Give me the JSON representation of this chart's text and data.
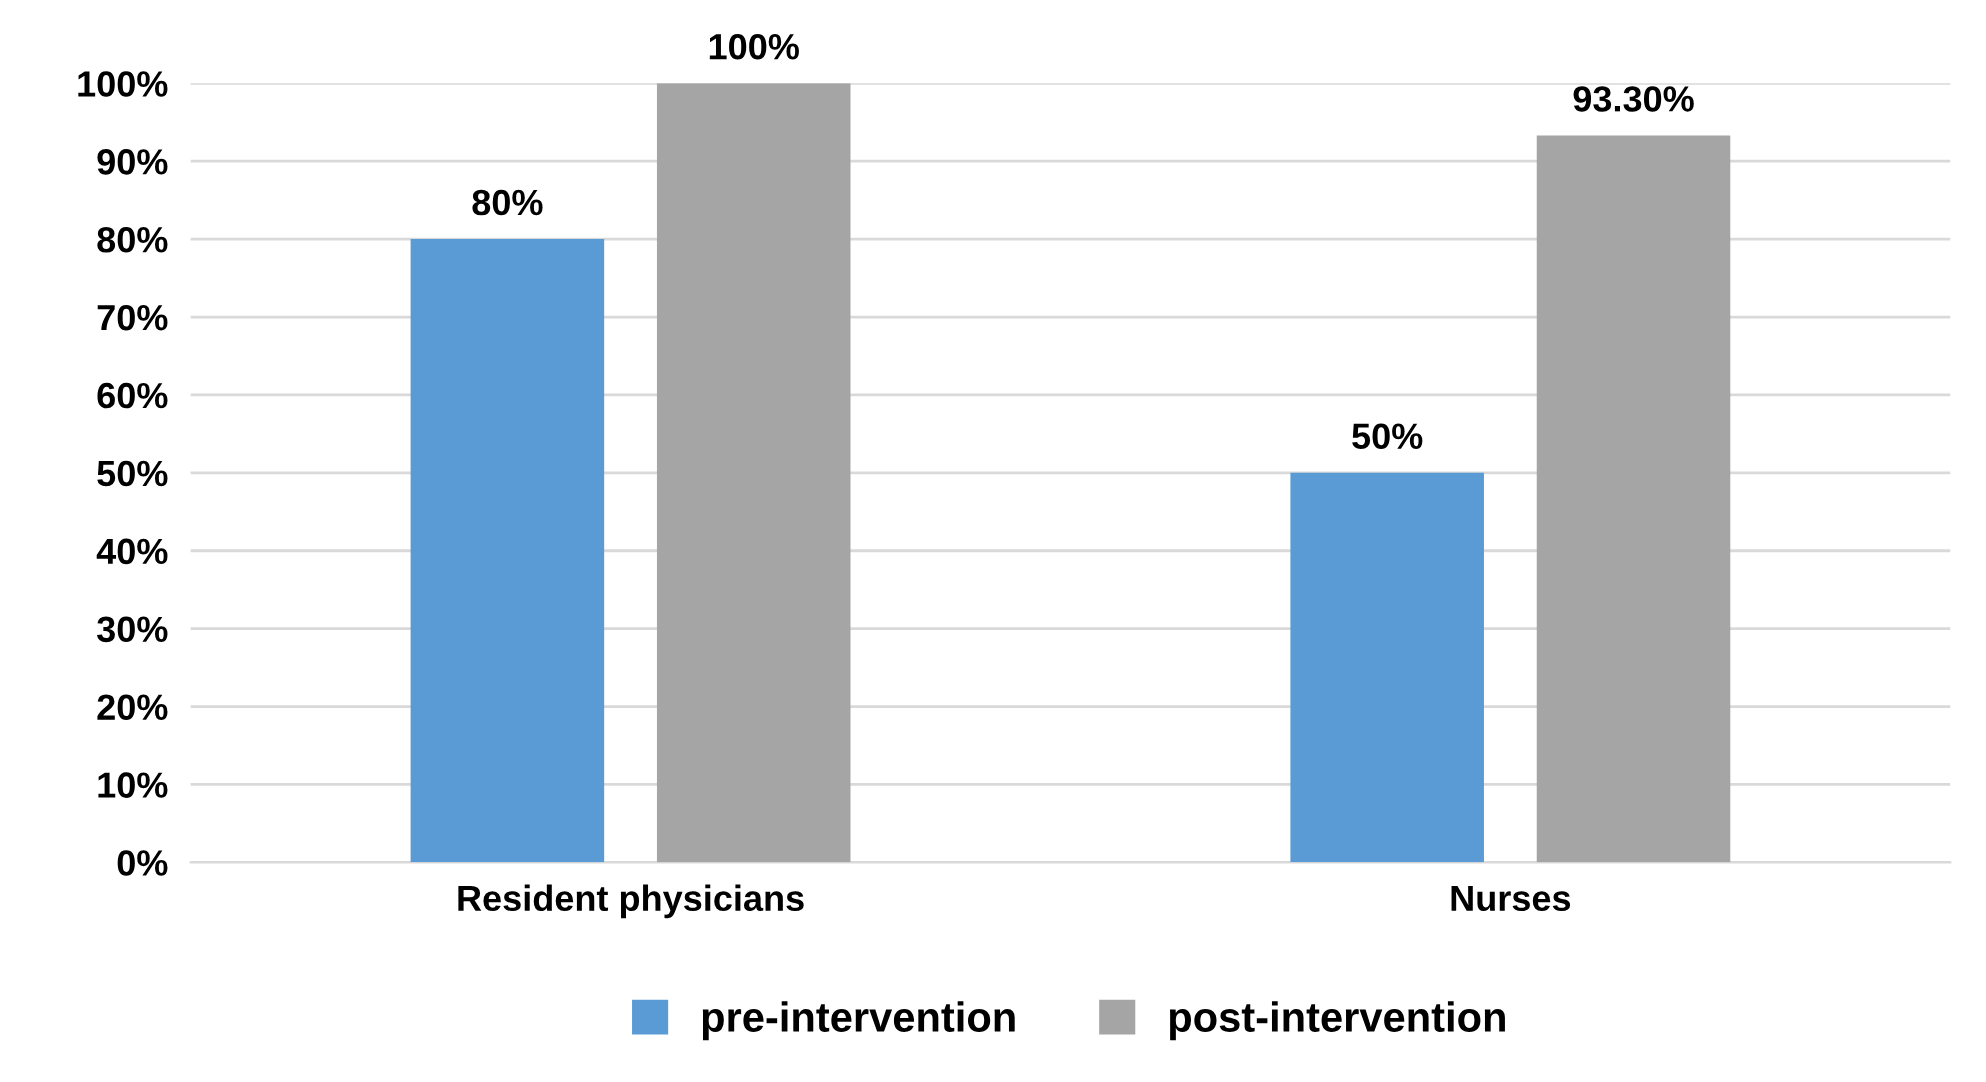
{
  "chart_data": {
    "type": "bar",
    "categories": [
      "Resident physicians",
      "Nurses"
    ],
    "series": [
      {
        "name": "pre-intervention",
        "color": "#5b9bd5",
        "values": [
          80,
          50
        ],
        "value_labels": [
          "80%",
          "50%"
        ]
      },
      {
        "name": "post-intervention",
        "color": "#a5a5a5",
        "values": [
          100,
          93.3
        ],
        "value_labels": [
          "100%",
          "93.30%"
        ]
      }
    ],
    "ylim": [
      0,
      100
    ],
    "yticks": [
      {
        "value": 0,
        "label": "0%"
      },
      {
        "value": 10,
        "label": "10%"
      },
      {
        "value": 20,
        "label": "20%"
      },
      {
        "value": 30,
        "label": "30%"
      },
      {
        "value": 40,
        "label": "40%"
      },
      {
        "value": 50,
        "label": "50%"
      },
      {
        "value": 60,
        "label": "60%"
      },
      {
        "value": 70,
        "label": "70%"
      },
      {
        "value": 80,
        "label": "80%"
      },
      {
        "value": 90,
        "label": "90%"
      },
      {
        "value": 100,
        "label": "100%"
      }
    ],
    "grid": "y",
    "legend": "bottom"
  }
}
